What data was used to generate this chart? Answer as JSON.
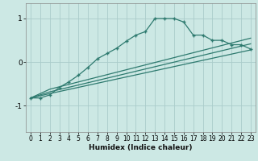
{
  "xlabel": "Humidex (Indice chaleur)",
  "xlim": [
    -0.5,
    23.5
  ],
  "ylim": [
    -1.6,
    1.35
  ],
  "yticks": [
    -1,
    0,
    1
  ],
  "xticks": [
    0,
    1,
    2,
    3,
    4,
    5,
    6,
    7,
    8,
    9,
    10,
    11,
    12,
    13,
    14,
    15,
    16,
    17,
    18,
    19,
    20,
    21,
    22,
    23
  ],
  "bg_color": "#cce8e4",
  "line_color": "#2e7a6f",
  "grid_color": "#aaccca",
  "lines": [
    {
      "x": [
        0,
        1,
        2,
        3,
        4,
        5,
        6,
        7,
        8,
        9,
        10,
        11,
        12,
        13,
        14,
        15,
        16,
        17,
        18,
        19,
        20,
        21,
        22,
        23
      ],
      "y": [
        -0.82,
        -0.82,
        -0.75,
        -0.58,
        -0.45,
        -0.3,
        -0.12,
        0.08,
        0.2,
        0.32,
        0.48,
        0.62,
        0.7,
        1.0,
        1.0,
        1.0,
        0.92,
        0.62,
        0.62,
        0.5,
        0.5,
        0.4,
        0.4,
        0.3
      ],
      "marker": true
    },
    {
      "x": [
        0,
        2,
        23
      ],
      "y": [
        -0.82,
        -0.72,
        0.28
      ],
      "marker": false
    },
    {
      "x": [
        0,
        2,
        23
      ],
      "y": [
        -0.82,
        -0.68,
        0.42
      ],
      "marker": false
    },
    {
      "x": [
        0,
        2,
        23
      ],
      "y": [
        -0.82,
        -0.62,
        0.55
      ],
      "marker": false
    }
  ]
}
